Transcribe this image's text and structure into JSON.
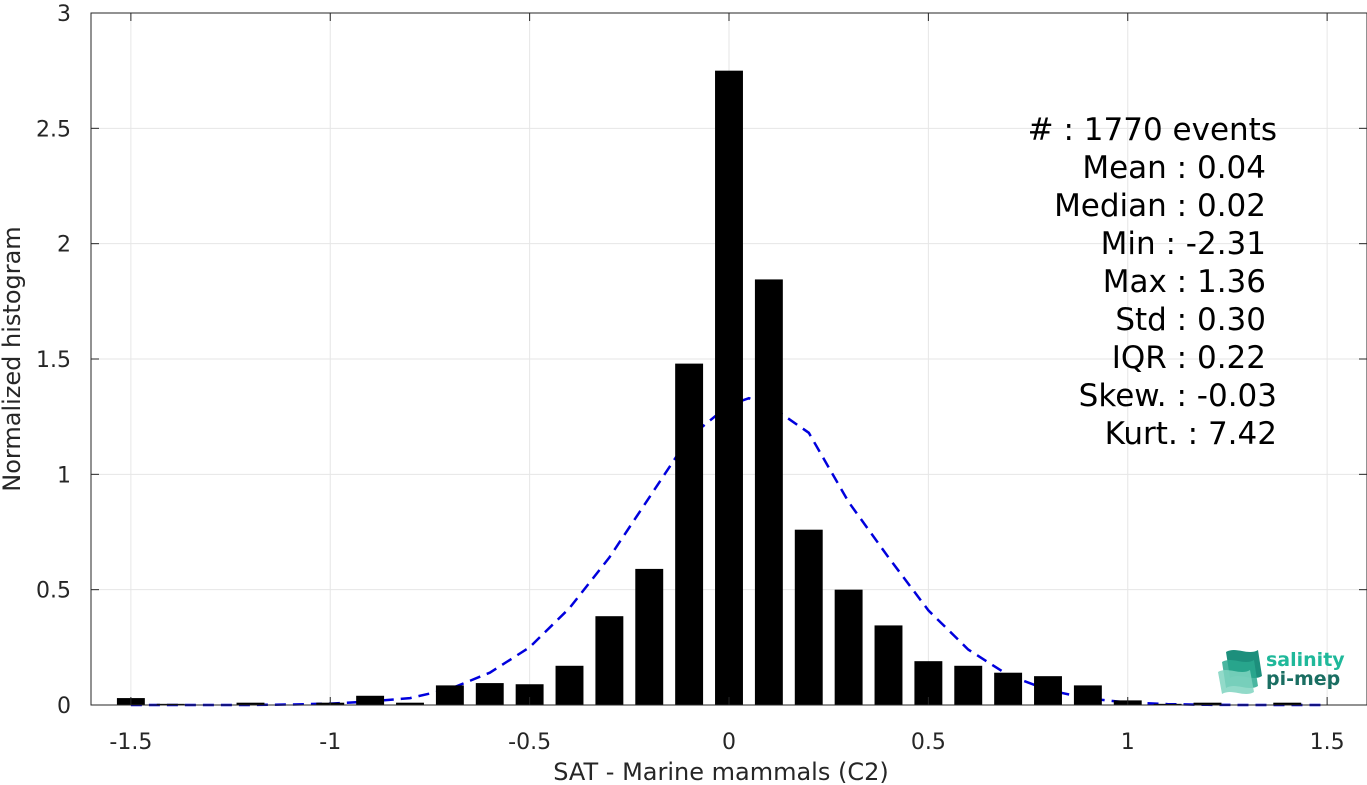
{
  "chart_data": {
    "type": "bar",
    "title": "",
    "xlabel": "SAT - Marine mammals (C2)",
    "ylabel": "Normalized histogram",
    "xlim": [
      -1.6,
      1.6
    ],
    "ylim": [
      0,
      3
    ],
    "grid": true,
    "xticks": [
      -1.5,
      -1,
      -0.5,
      0,
      0.5,
      1,
      1.5
    ],
    "xtick_labels": [
      "-1.5",
      "-1",
      "-0.5",
      "0",
      "0.5",
      "1",
      "1.5"
    ],
    "yticks": [
      0,
      0.5,
      1,
      1.5,
      2,
      2.5,
      3
    ],
    "ytick_labels": [
      "0",
      "0.5",
      "1",
      "1.5",
      "2",
      "2.5",
      "3"
    ],
    "bar_width": 0.07,
    "bars": {
      "x": [
        -1.5,
        -1.4,
        -1.3,
        -1.2,
        -1.1,
        -1.0,
        -0.9,
        -0.8,
        -0.7,
        -0.6,
        -0.5,
        -0.4,
        -0.3,
        -0.2,
        -0.1,
        0.0,
        0.1,
        0.2,
        0.3,
        0.4,
        0.5,
        0.6,
        0.7,
        0.8,
        0.9,
        1.0,
        1.1,
        1.2,
        1.3,
        1.4,
        1.5
      ],
      "values": [
        0.03,
        0.005,
        0.0,
        0.01,
        0.0,
        0.01,
        0.04,
        0.01,
        0.085,
        0.095,
        0.09,
        0.17,
        0.385,
        0.59,
        1.48,
        2.75,
        1.845,
        0.76,
        0.5,
        0.345,
        0.19,
        0.17,
        0.14,
        0.125,
        0.085,
        0.02,
        0.005,
        0.01,
        0.0,
        0.01,
        0.0
      ],
      "color": "#000000"
    },
    "fit_curve": {
      "style": "dashed",
      "color": "#0000dd",
      "x": [
        -1.5,
        -1.4,
        -1.3,
        -1.2,
        -1.1,
        -1.0,
        -0.9,
        -0.8,
        -0.7,
        -0.6,
        -0.5,
        -0.4,
        -0.3,
        -0.2,
        -0.1,
        0.0,
        0.05,
        0.1,
        0.2,
        0.3,
        0.4,
        0.5,
        0.6,
        0.7,
        0.8,
        0.9,
        1.0,
        1.1,
        1.2,
        1.3,
        1.4,
        1.5
      ],
      "y": [
        0.0,
        0.0,
        0.0,
        0.0,
        0.002,
        0.006,
        0.015,
        0.03,
        0.07,
        0.14,
        0.25,
        0.42,
        0.64,
        0.9,
        1.16,
        1.3,
        1.33,
        1.3,
        1.18,
        0.88,
        0.64,
        0.41,
        0.24,
        0.13,
        0.065,
        0.028,
        0.011,
        0.004,
        0.001,
        0.0,
        0.0,
        0.0
      ]
    }
  },
  "stats": [
    "#  : 1770 events",
    "Mean : 0.04",
    "Median : 0.02",
    "Min : -2.31",
    "Max : 1.36",
    "Std : 0.30",
    "IQR : 0.22",
    "Skew. : -0.03",
    "Kurt. : 7.42"
  ],
  "logo": {
    "line1": "salinity",
    "line2": "pi-mep",
    "color1": "#1fb89a",
    "color2": "#1a6e62"
  }
}
